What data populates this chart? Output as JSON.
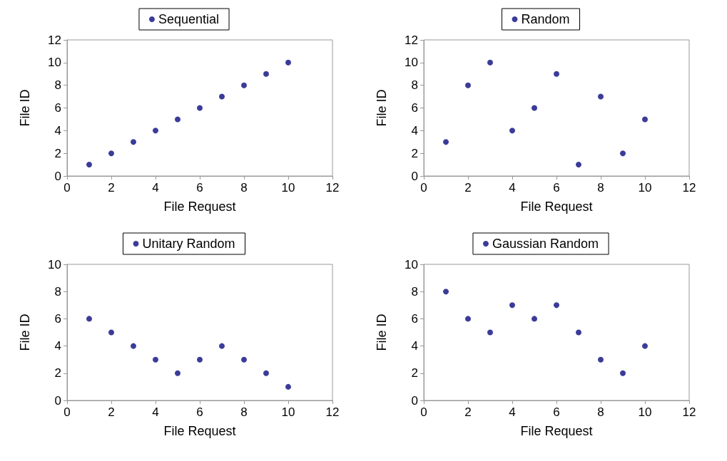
{
  "chart_data": [
    {
      "type": "scatter",
      "xlabel": "File Request",
      "ylabel": "File ID",
      "x": [
        1,
        2,
        3,
        4,
        5,
        6,
        7,
        8,
        9,
        10
      ],
      "xlim": [
        0,
        12
      ],
      "xticks": [
        0,
        2,
        4,
        6,
        8,
        10,
        12
      ],
      "ylim": [
        0,
        12
      ],
      "yticks": [
        0,
        2,
        4,
        6,
        8,
        10,
        12
      ],
      "grid": false,
      "legend": "top",
      "marker": "circle",
      "series": [
        {
          "name": "Sequential",
          "color": "#0a0a80",
          "values": [
            1,
            2,
            3,
            4,
            5,
            6,
            7,
            8,
            9,
            10
          ]
        }
      ]
    },
    {
      "type": "scatter",
      "xlabel": "File Request",
      "ylabel": "File ID",
      "x": [
        1,
        2,
        3,
        4,
        5,
        6,
        7,
        8,
        9,
        10
      ],
      "xlim": [
        0,
        12
      ],
      "xticks": [
        0,
        2,
        4,
        6,
        8,
        10,
        12
      ],
      "ylim": [
        0,
        12
      ],
      "yticks": [
        0,
        2,
        4,
        6,
        8,
        10,
        12
      ],
      "grid": false,
      "legend": "top",
      "marker": "circle",
      "series": [
        {
          "name": "Random",
          "color": "#0a0a80",
          "values": [
            3,
            8,
            10,
            4,
            6,
            9,
            1,
            7,
            2,
            5
          ]
        }
      ]
    },
    {
      "type": "scatter",
      "xlabel": "File Request",
      "ylabel": "File ID",
      "x": [
        1,
        2,
        3,
        4,
        5,
        6,
        7,
        8,
        9,
        10
      ],
      "xlim": [
        0,
        12
      ],
      "xticks": [
        0,
        2,
        4,
        6,
        8,
        10,
        12
      ],
      "ylim": [
        0,
        10
      ],
      "yticks": [
        0,
        2,
        4,
        6,
        8,
        10
      ],
      "grid": false,
      "legend": "top",
      "marker": "circle",
      "series": [
        {
          "name": "Unitary Random",
          "color": "#0a0a80",
          "values": [
            6,
            5,
            4,
            3,
            2,
            3,
            4,
            3,
            2,
            1
          ]
        }
      ]
    },
    {
      "type": "scatter",
      "xlabel": "File Request",
      "ylabel": "File ID",
      "x": [
        1,
        2,
        3,
        4,
        5,
        6,
        7,
        8,
        9,
        10
      ],
      "xlim": [
        0,
        12
      ],
      "xticks": [
        0,
        2,
        4,
        6,
        8,
        10,
        12
      ],
      "ylim": [
        0,
        10
      ],
      "yticks": [
        0,
        2,
        4,
        6,
        8,
        10
      ],
      "grid": false,
      "legend": "top",
      "marker": "circle",
      "series": [
        {
          "name": "Gaussian Random",
          "color": "#0a0a80",
          "values": [
            8,
            6,
            5,
            7,
            6,
            7,
            5,
            3,
            2,
            4
          ]
        }
      ]
    }
  ]
}
